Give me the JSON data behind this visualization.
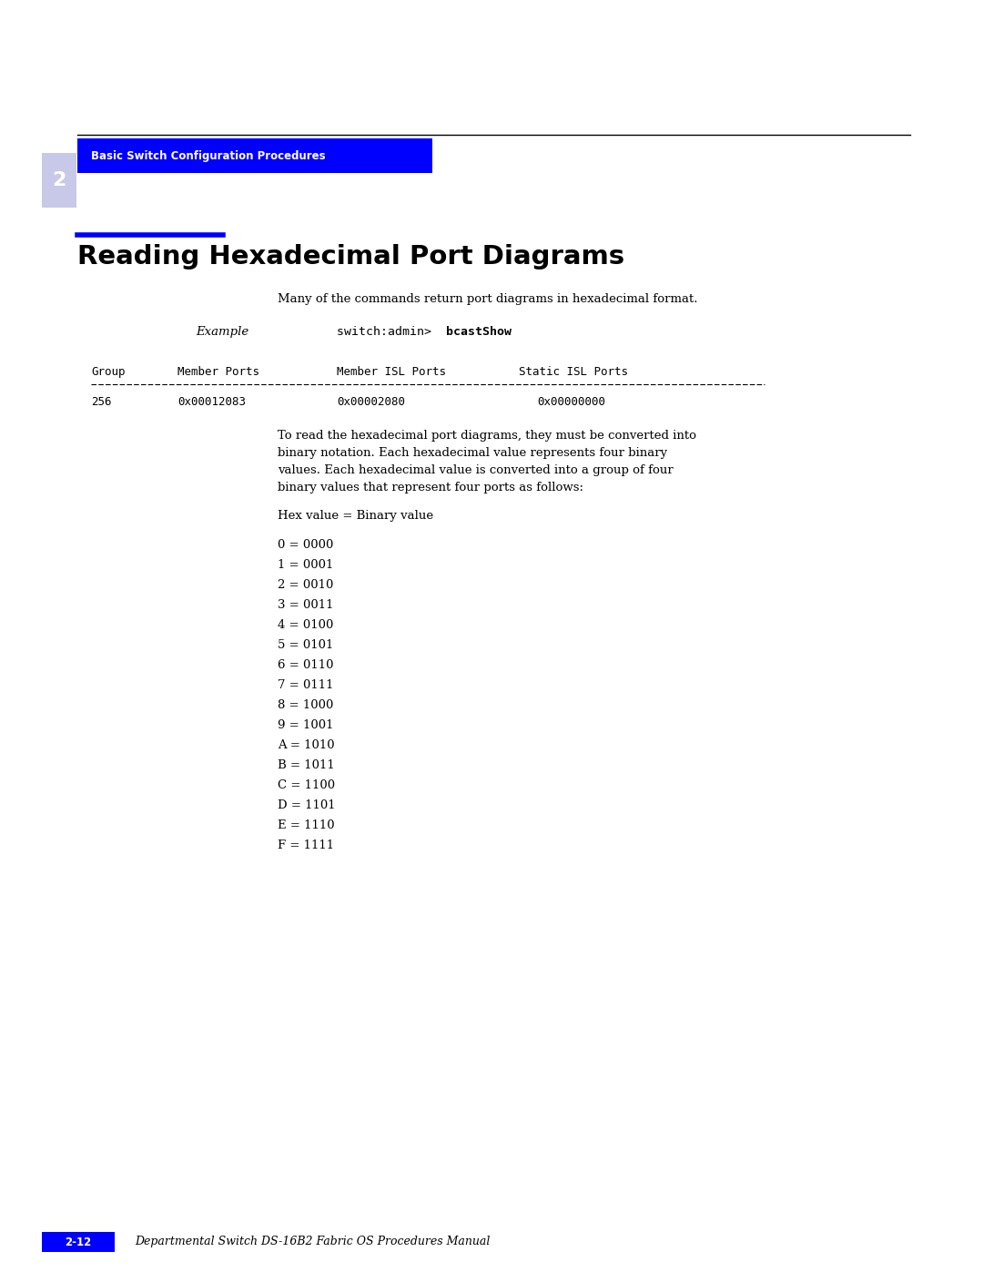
{
  "bg_color": "#ffffff",
  "page_width": 10.8,
  "page_height": 13.97,
  "header_bar_color": "#0000ff",
  "header_text": "Basic Switch Configuration Procedures",
  "header_text_color": "#ffffff",
  "chapter_num_text": "2",
  "blue_underline_color": "#0000ff",
  "title_text": "Reading Hexadecimal Port Diagrams",
  "title_fontsize": 21,
  "intro_text": "Many of the commands return port diagrams in hexadecimal format.",
  "example_cmd_normal": "switch:admin> ",
  "example_cmd_bold": "bcastShow",
  "para_line1": "To read the hexadecimal port diagrams, they must be converted into",
  "para_line2": "binary notation. Each hexadecimal value represents four binary",
  "para_line3": "values. Each hexadecimal value is converted into a group of four",
  "para_line4": "binary values that represent four ports as follows:",
  "hex_label": "Hex value = Binary value",
  "hex_table": [
    {
      "hex": "0",
      "bin": "0000"
    },
    {
      "hex": "1",
      "bin": "0001"
    },
    {
      "hex": "2",
      "bin": "0010"
    },
    {
      "hex": "3",
      "bin": "0011"
    },
    {
      "hex": "4",
      "bin": "0100"
    },
    {
      "hex": "5",
      "bin": "0101"
    },
    {
      "hex": "6",
      "bin": "0110"
    },
    {
      "hex": "7",
      "bin": "0111"
    },
    {
      "hex": "8",
      "bin": "1000"
    },
    {
      "hex": "9",
      "bin": "1001"
    },
    {
      "hex": "A",
      "bin": "1010"
    },
    {
      "hex": "B",
      "bin": "1011"
    },
    {
      "hex": "C",
      "bin": "1100"
    },
    {
      "hex": "D",
      "bin": "1101"
    },
    {
      "hex": "E",
      "bin": "1110"
    },
    {
      "hex": "F",
      "bin": "1111"
    }
  ],
  "footer_bar_color": "#0000ff",
  "footer_page_text": "2-12",
  "footer_title_text": "Departmental Switch DS-16B2 Fabric OS Procedures Manual",
  "left_stripe_color": "#c8c8e8"
}
